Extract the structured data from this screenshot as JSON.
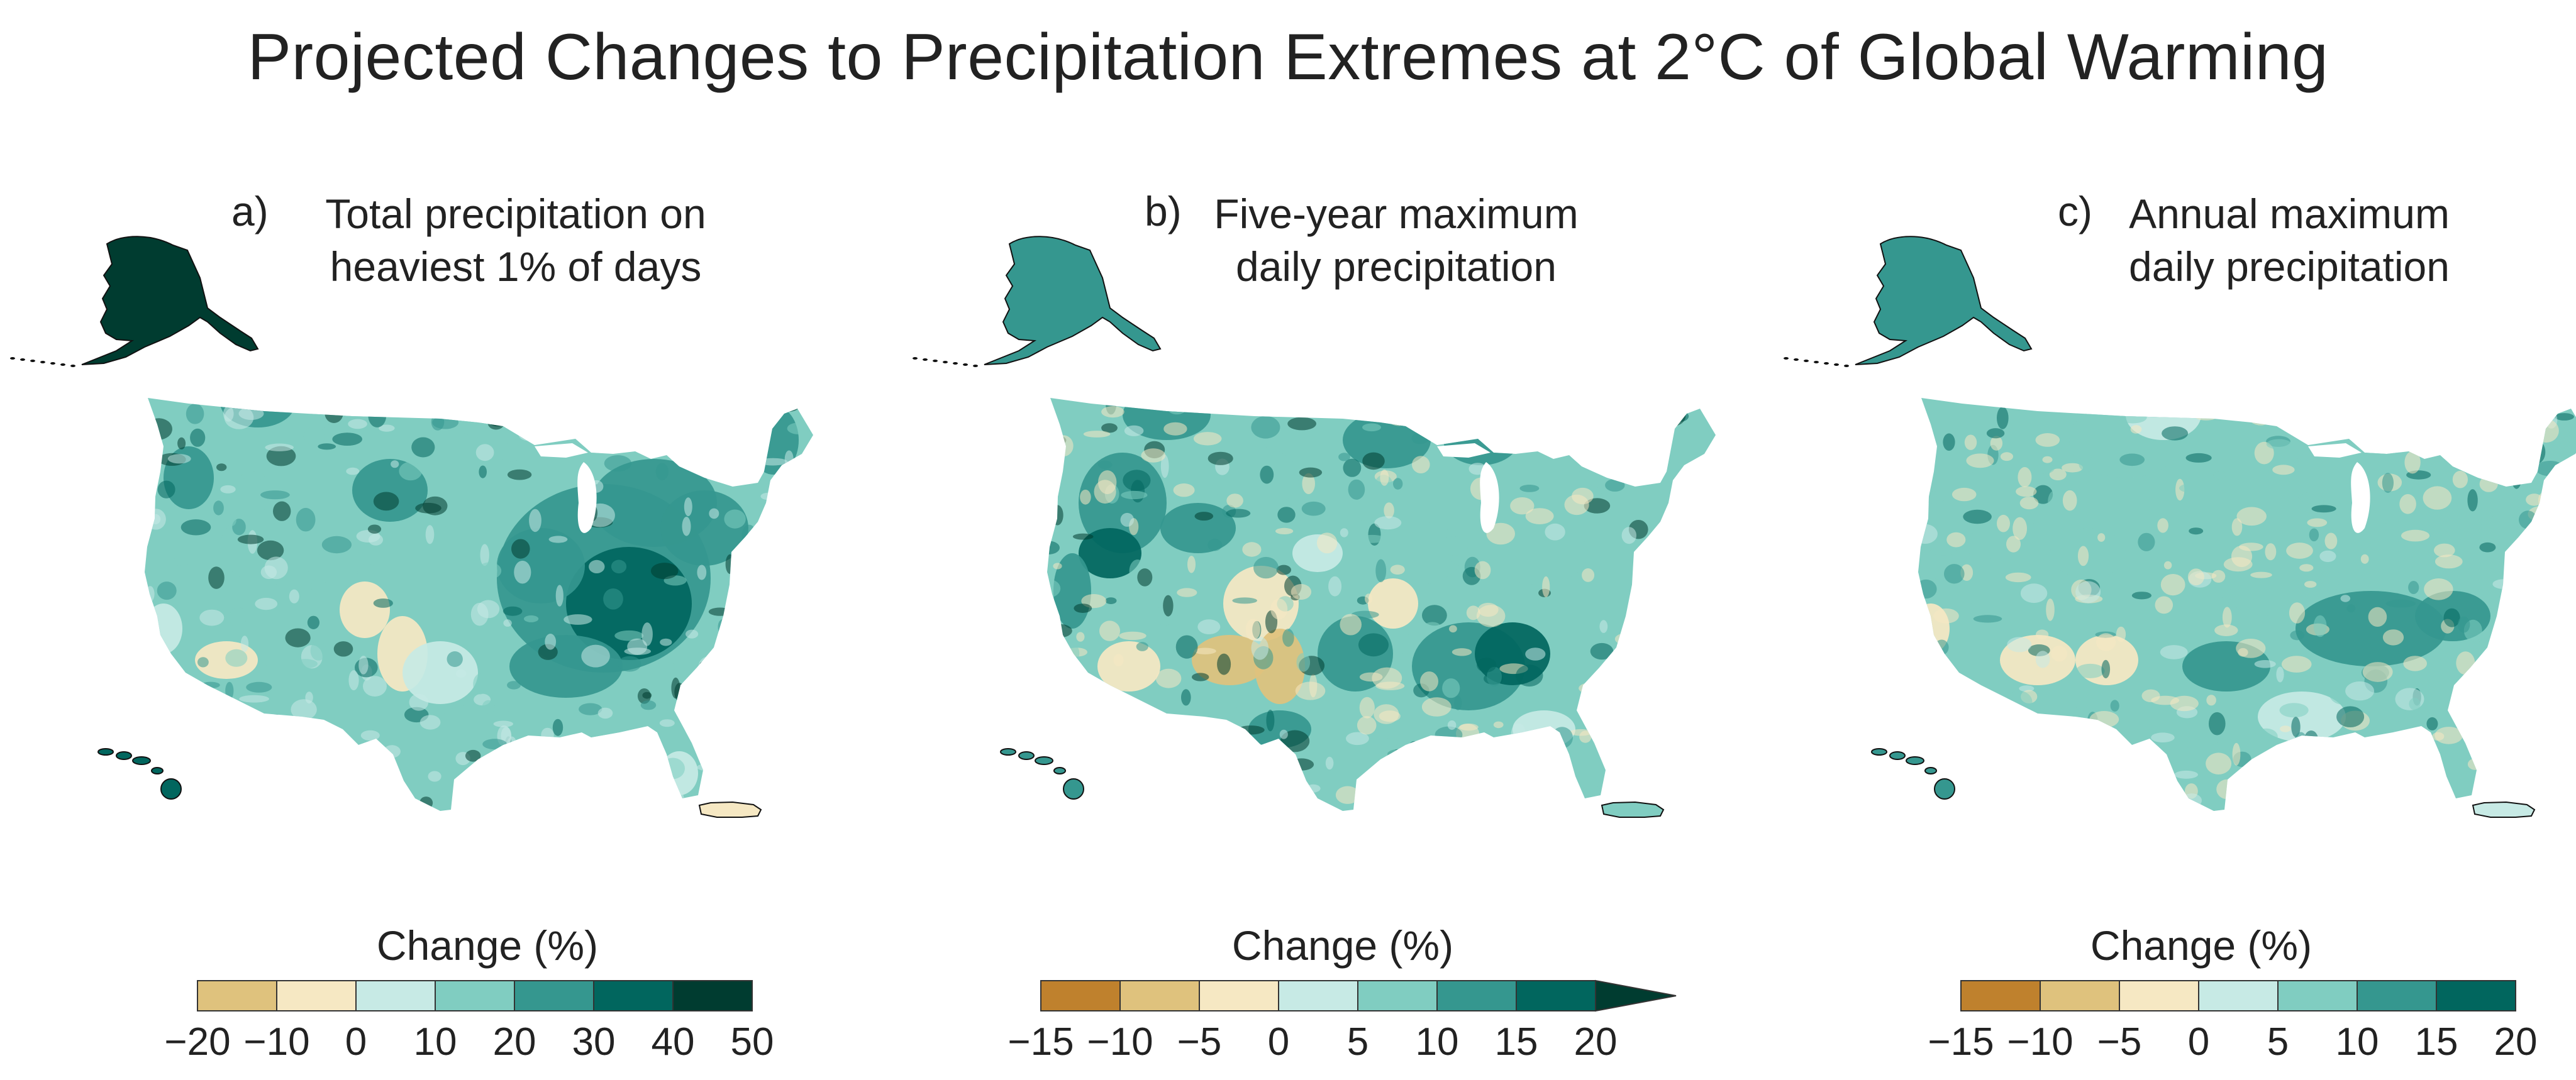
{
  "figure_title": "Projected Changes to Precipitation Extremes at 2°C of Global Warming",
  "panels": [
    {
      "letter": "a)",
      "title_lines": [
        "Total precipitation on",
        "heaviest 1% of days"
      ],
      "colorbar": {
        "title": "Change (%)",
        "ticks": [
          "−20",
          "−10",
          "0",
          "10",
          "20",
          "30",
          "40",
          "50"
        ],
        "colors": [
          "#dfc27d",
          "#f6e8c3",
          "#c7eae5",
          "#80cdc1",
          "#35978f",
          "#01665e",
          "#003c30"
        ],
        "extend_arrow": false
      },
      "region_colors": {
        "conus_base": "#80cdc1",
        "alaska": "#003c30",
        "hawaii": "#01665e",
        "puerto_rico": "#f6e8c3"
      }
    },
    {
      "letter": "b)",
      "title_lines": [
        "Five-year maximum",
        "daily precipitation"
      ],
      "colorbar": {
        "title": "Change (%)",
        "ticks": [
          "−15",
          "−10",
          "−5",
          "0",
          "5",
          "10",
          "15",
          "20"
        ],
        "colors": [
          "#bf812d",
          "#dfc27d",
          "#f6e8c3",
          "#c7eae5",
          "#80cdc1",
          "#35978f",
          "#01665e",
          "#003c30"
        ],
        "extend_arrow": true
      },
      "region_colors": {
        "conus_base": "#80cdc1",
        "alaska": "#35978f",
        "hawaii": "#35978f",
        "puerto_rico": "#80cdc1"
      }
    },
    {
      "letter": "c)",
      "title_lines": [
        "Annual maximum",
        "daily precipitation"
      ],
      "colorbar": {
        "title": "Change (%)",
        "ticks": [
          "−15",
          "−10",
          "−5",
          "0",
          "5",
          "10",
          "15",
          "20"
        ],
        "colors": [
          "#bf812d",
          "#dfc27d",
          "#f6e8c3",
          "#c7eae5",
          "#80cdc1",
          "#35978f",
          "#01665e"
        ],
        "extend_arrow": false
      },
      "region_colors": {
        "conus_base": "#80cdc1",
        "alaska": "#35978f",
        "hawaii": "#35978f",
        "puerto_rico": "#c7eae5"
      }
    }
  ]
}
